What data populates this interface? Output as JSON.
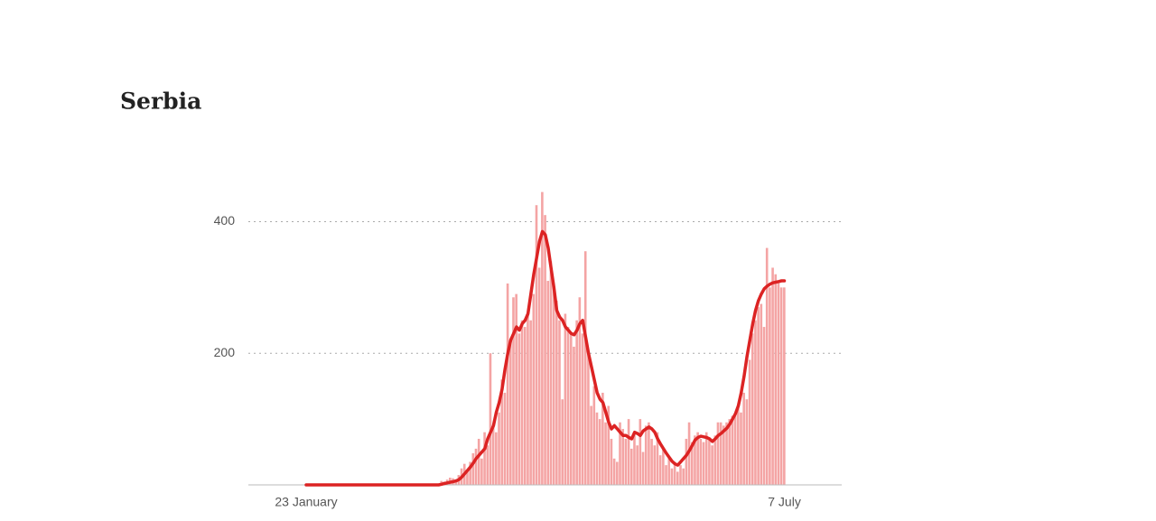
{
  "chart_data": {
    "type": "bar",
    "title": "Serbia",
    "categories": [
      "23 January",
      null,
      null,
      null,
      null,
      null,
      null,
      null,
      null,
      null,
      null,
      null,
      null,
      null,
      null,
      null,
      null,
      null,
      null,
      null,
      null,
      null,
      null,
      null,
      null,
      null,
      null,
      null,
      null,
      null,
      null,
      null,
      null,
      null,
      null,
      null,
      null,
      null,
      null,
      null,
      null,
      null,
      null,
      null,
      null,
      null,
      null,
      null,
      null,
      null,
      null,
      null,
      null,
      null,
      null,
      null,
      null,
      null,
      null,
      null,
      null,
      null,
      null,
      null,
      null,
      null,
      null,
      null,
      null,
      null,
      null,
      null,
      null,
      null,
      null,
      null,
      null,
      null,
      null,
      null,
      null,
      null,
      null,
      null,
      null,
      null,
      null,
      null,
      null,
      null,
      null,
      null,
      null,
      null,
      null,
      null,
      null,
      null,
      null,
      null,
      null,
      null,
      null,
      null,
      null,
      null,
      null,
      null,
      null,
      null,
      null,
      null,
      null,
      null,
      null,
      null,
      null,
      null,
      null,
      null,
      null,
      null,
      null,
      null,
      null,
      null,
      null,
      null,
      null,
      null,
      null,
      null,
      null,
      null,
      null,
      null,
      null,
      null,
      null,
      null,
      null,
      null,
      null,
      null,
      null,
      null,
      null,
      null,
      null,
      null,
      null,
      null,
      null,
      null,
      null,
      null,
      null,
      null,
      null,
      null,
      null,
      null,
      null,
      null,
      null,
      null,
      "7 July"
    ],
    "series": [
      {
        "type": "bar",
        "color": "#f4a4a4",
        "values": [
          0,
          0,
          0,
          0,
          0,
          0,
          0,
          0,
          0,
          0,
          0,
          0,
          0,
          0,
          0,
          0,
          0,
          0,
          0,
          0,
          0,
          0,
          0,
          0,
          0,
          0,
          0,
          0,
          0,
          0,
          0,
          0,
          0,
          0,
          0,
          0,
          0,
          0,
          0,
          0,
          0,
          0,
          0,
          1,
          0,
          1,
          2,
          6,
          5,
          8,
          11,
          10,
          8,
          15,
          25,
          32,
          20,
          35,
          48,
          55,
          70,
          40,
          80,
          60,
          200,
          90,
          80,
          110,
          160,
          140,
          306,
          220,
          285,
          290,
          230,
          250,
          240,
          260,
          250,
          290,
          425,
          330,
          445,
          410,
          310,
          340,
          300,
          280,
          250,
          130,
          260,
          240,
          230,
          210,
          250,
          285,
          230,
          355,
          200,
          120,
          150,
          110,
          100,
          140,
          95,
          120,
          70,
          40,
          35,
          95,
          85,
          70,
          100,
          55,
          80,
          60,
          100,
          50,
          90,
          95,
          70,
          60,
          80,
          45,
          55,
          30,
          40,
          25,
          35,
          20,
          30,
          25,
          70,
          95,
          65,
          75,
          80,
          70,
          65,
          80,
          70,
          60,
          75,
          95,
          95,
          90,
          95,
          100,
          105,
          110,
          120,
          110,
          140,
          130,
          190,
          230,
          250,
          270,
          275,
          240,
          360,
          300,
          330,
          320,
          310,
          300,
          300
        ]
      },
      {
        "type": "line",
        "color": "#dc2323",
        "values": [
          0,
          0,
          0,
          0,
          0,
          0,
          0,
          0,
          0,
          0,
          0,
          0,
          0,
          0,
          0,
          0,
          0,
          0,
          0,
          0,
          0,
          0,
          0,
          0,
          0,
          0,
          0,
          0,
          0,
          0,
          0,
          0,
          0,
          0,
          0,
          0,
          0,
          0,
          0,
          0,
          0,
          0,
          0,
          0,
          0,
          0,
          0,
          1,
          2,
          3,
          4,
          5,
          6,
          8,
          12,
          17,
          22,
          27,
          33,
          40,
          45,
          50,
          55,
          70,
          80,
          90,
          110,
          125,
          145,
          175,
          200,
          220,
          230,
          240,
          235,
          245,
          250,
          260,
          290,
          320,
          345,
          370,
          385,
          380,
          360,
          330,
          300,
          265,
          255,
          250,
          240,
          235,
          230,
          228,
          235,
          245,
          250,
          225,
          200,
          180,
          160,
          140,
          130,
          125,
          110,
          95,
          85,
          90,
          85,
          80,
          75,
          75,
          72,
          70,
          80,
          78,
          75,
          82,
          85,
          88,
          85,
          80,
          70,
          62,
          55,
          48,
          42,
          36,
          32,
          30,
          35,
          40,
          45,
          52,
          60,
          68,
          72,
          74,
          73,
          72,
          70,
          66,
          70,
          75,
          78,
          82,
          86,
          92,
          100,
          108,
          120,
          140,
          165,
          195,
          220,
          245,
          265,
          280,
          290,
          298,
          302,
          305,
          307,
          308,
          309,
          310,
          310
        ]
      }
    ],
    "ylim": [
      0,
      450
    ],
    "yticks": [
      200,
      400
    ],
    "grid": true
  }
}
